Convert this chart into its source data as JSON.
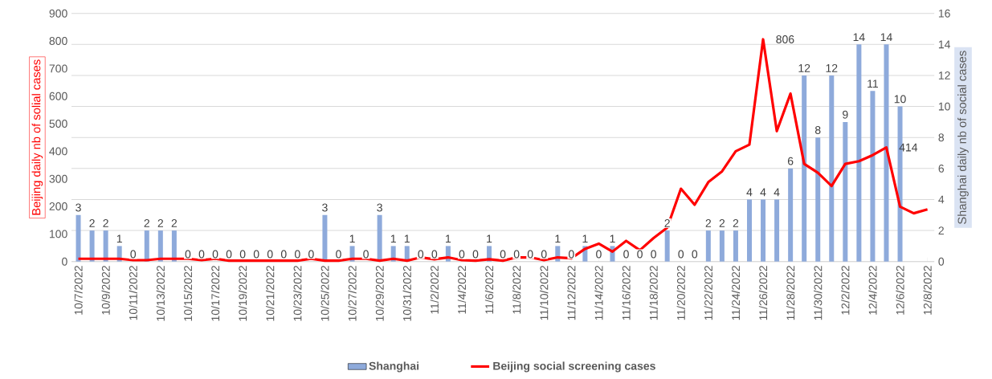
{
  "chart_data": {
    "type": "bar",
    "ylabel": "Beijing daily nb of solial cases",
    "y2label": "Shanghai daily nb of social cases",
    "categories": [
      "10/7/2022",
      null,
      "10/9/2022",
      null,
      "10/11/2022",
      null,
      "10/13/2022",
      null,
      "10/15/2022",
      null,
      "10/17/2022",
      null,
      "10/19/2022",
      null,
      "10/21/2022",
      null,
      "10/23/2022",
      null,
      "10/25/2022",
      null,
      "10/27/2022",
      null,
      "10/29/2022",
      null,
      "10/31/2022",
      null,
      "11/2/2022",
      null,
      "11/4/2022",
      null,
      "11/6/2022",
      null,
      "11/8/2022",
      null,
      "11/10/2022",
      null,
      "11/12/2022",
      null,
      "11/14/2022",
      null,
      "11/16/2022",
      null,
      "11/18/2022",
      null,
      "11/20/2022",
      null,
      "11/22/2022",
      null,
      "11/24/2022",
      null,
      "11/26/2022",
      null,
      "11/28/2022",
      null,
      "11/30/2022",
      null,
      "12/2/2022",
      null,
      "12/4/2022",
      null,
      "12/6/2022",
      null,
      "12/8/2022"
    ],
    "series": [
      {
        "name": "Shanghai",
        "axis": "y2",
        "color": "#8eaadb",
        "data_labels": true,
        "values": [
          3,
          2,
          2,
          1,
          0,
          2,
          2,
          2,
          0,
          0,
          0,
          0,
          0,
          0,
          0,
          0,
          0,
          0,
          3,
          0,
          1,
          0,
          3,
          1,
          1,
          0,
          0,
          1,
          0,
          0,
          1,
          0,
          0,
          0,
          0,
          1,
          0,
          1,
          0,
          1,
          0,
          0,
          0,
          2,
          0,
          0,
          2,
          2,
          2,
          4,
          4,
          4,
          6,
          12,
          8,
          12,
          9,
          14,
          11,
          14,
          10,
          null,
          null
        ]
      },
      {
        "name": "Beijing social screening cases",
        "type": "line",
        "axis": "y",
        "color": "#ff0000",
        "values": [
          10,
          10,
          10,
          10,
          5,
          5,
          10,
          10,
          10,
          5,
          10,
          3,
          3,
          3,
          3,
          3,
          3,
          10,
          3,
          3,
          10,
          10,
          3,
          10,
          3,
          15,
          8,
          15,
          5,
          3,
          8,
          3,
          15,
          15,
          5,
          15,
          12,
          46,
          65,
          36,
          75,
          41,
          85,
          123,
          264,
          206,
          288,
          327,
          400,
          424,
          806,
          473,
          609,
          354,
          322,
          274,
          354,
          364,
          386,
          414,
          199,
          175,
          189
        ],
        "value_labels": [
          null,
          null,
          null,
          null,
          null,
          null,
          null,
          null,
          null,
          null,
          null,
          null,
          null,
          null,
          null,
          null,
          null,
          null,
          null,
          null,
          null,
          null,
          null,
          null,
          null,
          null,
          null,
          null,
          null,
          null,
          null,
          null,
          null,
          null,
          null,
          null,
          null,
          null,
          null,
          null,
          null,
          null,
          null,
          null,
          null,
          null,
          null,
          null,
          null,
          null,
          "806",
          null,
          null,
          null,
          null,
          null,
          null,
          null,
          null,
          "414",
          null,
          null,
          null
        ]
      }
    ],
    "ylim": [
      0,
      900
    ],
    "yticks": [
      0,
      100,
      200,
      300,
      400,
      500,
      600,
      700,
      800,
      900
    ],
    "y2lim": [
      0,
      16
    ],
    "y2ticks": [
      0,
      2,
      4,
      6,
      8,
      10,
      12,
      14,
      16
    ],
    "grid": "y",
    "legend": "bottom"
  }
}
